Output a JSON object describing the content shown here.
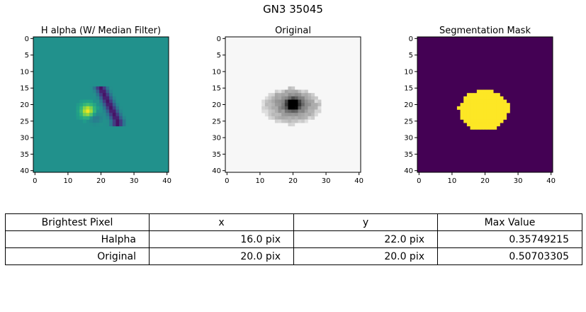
{
  "figure": {
    "title": "GN3 35045"
  },
  "chart_data": [
    {
      "type": "heatmap",
      "title": "H alpha (W/ Median Filter)",
      "colormap": "viridis",
      "xlim": [
        0,
        40
      ],
      "ylim": [
        40,
        0
      ],
      "xticks": [
        0,
        10,
        20,
        30,
        40
      ],
      "yticks": [
        0,
        5,
        10,
        15,
        20,
        25,
        30,
        35,
        40
      ],
      "background_value": 0,
      "value_range": [
        -0.4,
        0.36
      ],
      "features": [
        {
          "kind": "peak",
          "x": 16,
          "y": 22,
          "value": 0.357
        },
        {
          "kind": "trough",
          "x": 22,
          "y": 17,
          "value": -0.3
        },
        {
          "kind": "trough",
          "x": 24,
          "y": 23,
          "value": -0.33
        }
      ]
    },
    {
      "type": "heatmap",
      "title": "Original",
      "colormap": "gray_r",
      "xlim": [
        0,
        40
      ],
      "ylim": [
        40,
        0
      ],
      "xticks": [
        0,
        10,
        20,
        30,
        40
      ],
      "yticks": [
        0,
        5,
        10,
        15,
        20,
        25,
        30,
        35,
        40
      ],
      "peak": {
        "x": 20,
        "y": 20,
        "value": 0.507
      }
    },
    {
      "type": "heatmap",
      "title": "Segmentation Mask",
      "colormap": "viridis",
      "xlim": [
        0,
        40
      ],
      "ylim": [
        40,
        0
      ],
      "xticks": [
        0,
        10,
        20,
        30,
        40
      ],
      "yticks": [
        0,
        5,
        10,
        15,
        20,
        25,
        30,
        35,
        40
      ],
      "mask_values": [
        0,
        1
      ]
    },
    {
      "type": "table",
      "header": [
        "Brightest Pixel",
        "x",
        "y",
        "Max Value"
      ],
      "rows": [
        [
          "Halpha",
          "16.0 pix",
          "22.0 pix",
          "0.35749215"
        ],
        [
          "Original",
          "20.0 pix",
          "20.0 pix",
          "0.50703305"
        ]
      ]
    }
  ],
  "colors": {
    "viridis_background": "#21918c",
    "mask_off": "#440154",
    "mask_on": "#fde725",
    "original_background": "#f7f7f7"
  }
}
